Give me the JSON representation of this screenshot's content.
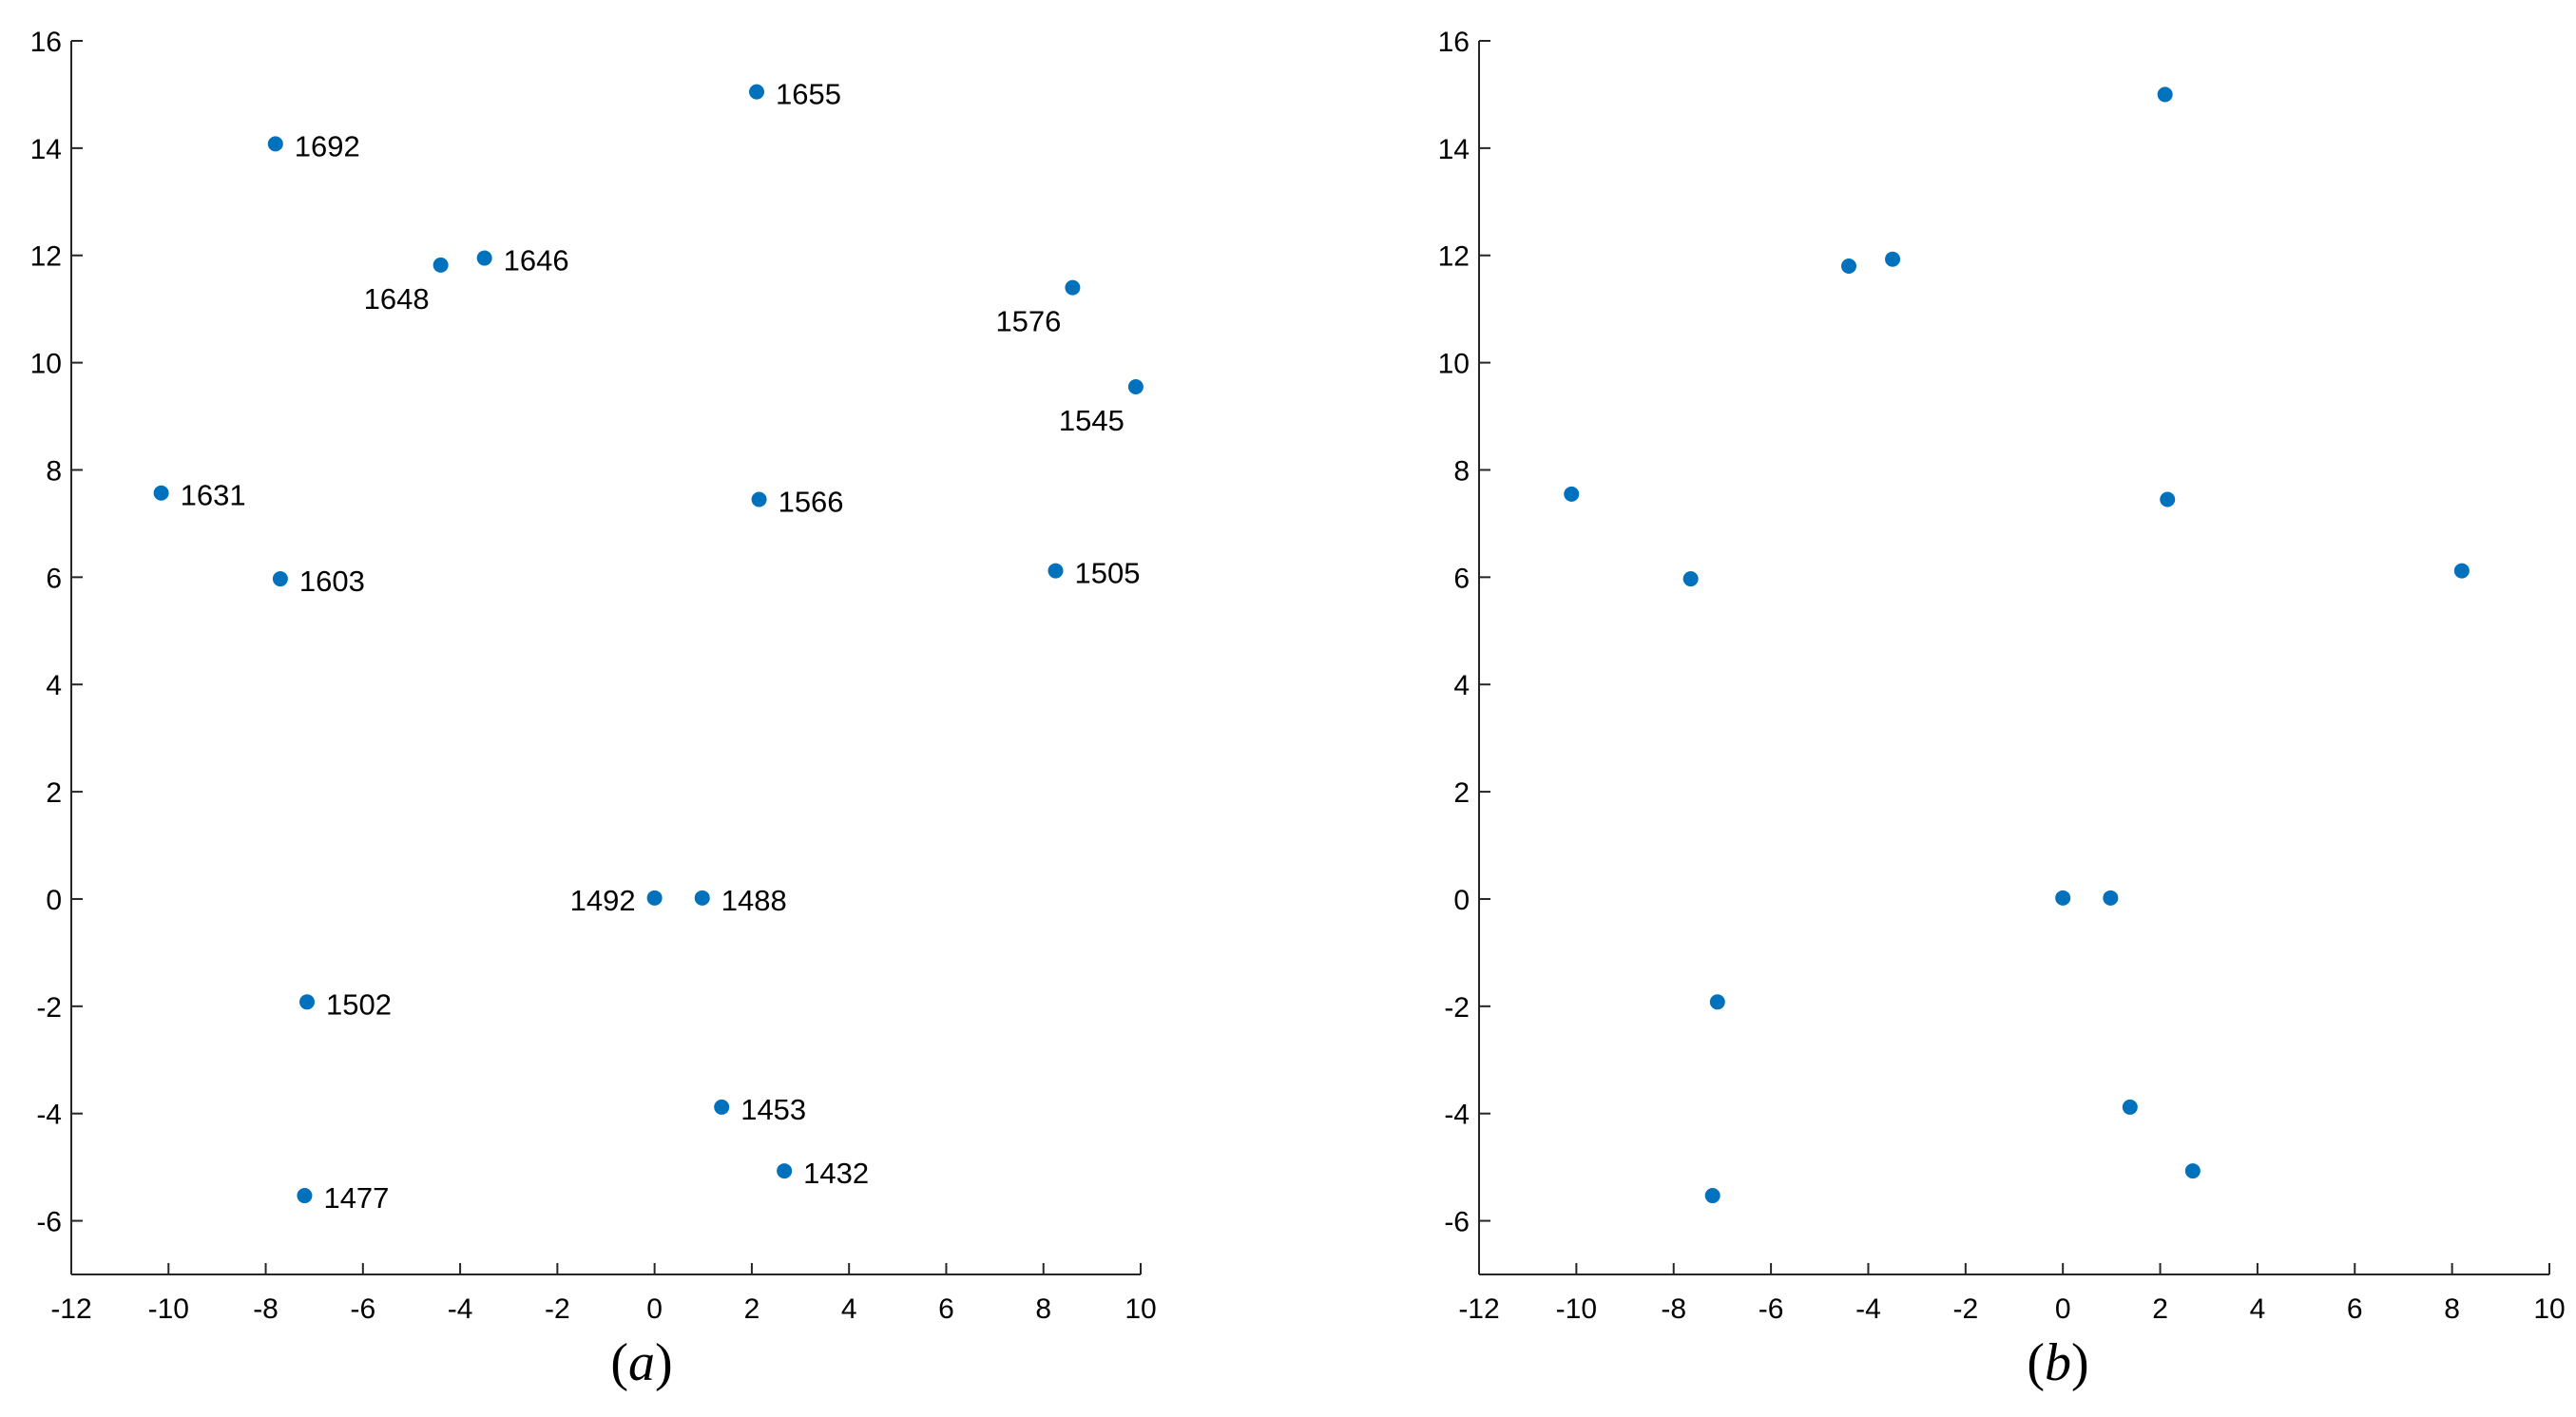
{
  "chart_data": [
    {
      "type": "scatter",
      "panel_caption": {
        "open": "(",
        "letter": "a",
        "close": ")"
      },
      "xlim": [
        -12,
        10
      ],
      "ylim": [
        -7,
        16
      ],
      "xticks": [
        -12,
        -10,
        -8,
        -6,
        -4,
        -2,
        0,
        2,
        4,
        6,
        8,
        10
      ],
      "yticks": [
        -6,
        -4,
        -2,
        0,
        2,
        4,
        6,
        8,
        10,
        12,
        14,
        16
      ],
      "marker_color": "#0072BD",
      "points": [
        {
          "x": 2.1,
          "y": 15.05,
          "label": "1655",
          "label_pos": "right"
        },
        {
          "x": -7.8,
          "y": 14.08,
          "label": "1692",
          "label_pos": "right"
        },
        {
          "x": -3.5,
          "y": 11.95,
          "label": "1646",
          "label_pos": "right"
        },
        {
          "x": -4.4,
          "y": 11.82,
          "label": "1648",
          "label_pos": "below-left"
        },
        {
          "x": 8.6,
          "y": 11.4,
          "label": "1576",
          "label_pos": "below-left"
        },
        {
          "x": 9.9,
          "y": 9.55,
          "label": "1545",
          "label_pos": "below-left"
        },
        {
          "x": -10.15,
          "y": 7.57,
          "label": "1631",
          "label_pos": "right"
        },
        {
          "x": 2.15,
          "y": 7.45,
          "label": "1566",
          "label_pos": "right"
        },
        {
          "x": 8.25,
          "y": 6.12,
          "label": "1505",
          "label_pos": "right"
        },
        {
          "x": -7.7,
          "y": 5.97,
          "label": "1603",
          "label_pos": "right"
        },
        {
          "x": 0.0,
          "y": 0.02,
          "label": "1492",
          "label_pos": "left"
        },
        {
          "x": 0.98,
          "y": 0.02,
          "label": "1488",
          "label_pos": "right"
        },
        {
          "x": -7.15,
          "y": -1.92,
          "label": "1502",
          "label_pos": "right"
        },
        {
          "x": 1.38,
          "y": -3.88,
          "label": "1453",
          "label_pos": "right"
        },
        {
          "x": 2.67,
          "y": -5.07,
          "label": "1432",
          "label_pos": "right"
        },
        {
          "x": -7.2,
          "y": -5.53,
          "label": "1477",
          "label_pos": "right"
        }
      ]
    },
    {
      "type": "scatter",
      "panel_caption": {
        "open": "(",
        "letter": "b",
        "close": ")"
      },
      "xlim": [
        -12,
        10
      ],
      "ylim": [
        -7,
        16
      ],
      "xticks": [
        -12,
        -10,
        -8,
        -6,
        -4,
        -2,
        0,
        2,
        4,
        6,
        8,
        10
      ],
      "yticks": [
        -6,
        -4,
        -2,
        0,
        2,
        4,
        6,
        8,
        10,
        12,
        14,
        16
      ],
      "marker_color": "#0072BD",
      "points": [
        {
          "x": 2.1,
          "y": 15.0
        },
        {
          "x": -3.5,
          "y": 11.93
        },
        {
          "x": -4.4,
          "y": 11.8
        },
        {
          "x": -10.1,
          "y": 7.55
        },
        {
          "x": 2.15,
          "y": 7.45
        },
        {
          "x": -7.65,
          "y": 5.97
        },
        {
          "x": 8.2,
          "y": 6.12
        },
        {
          "x": 0.0,
          "y": 0.02
        },
        {
          "x": 0.98,
          "y": 0.02
        },
        {
          "x": -7.1,
          "y": -1.92
        },
        {
          "x": 1.38,
          "y": -3.88
        },
        {
          "x": 2.67,
          "y": -5.07
        },
        {
          "x": -7.2,
          "y": -5.53
        }
      ]
    }
  ]
}
